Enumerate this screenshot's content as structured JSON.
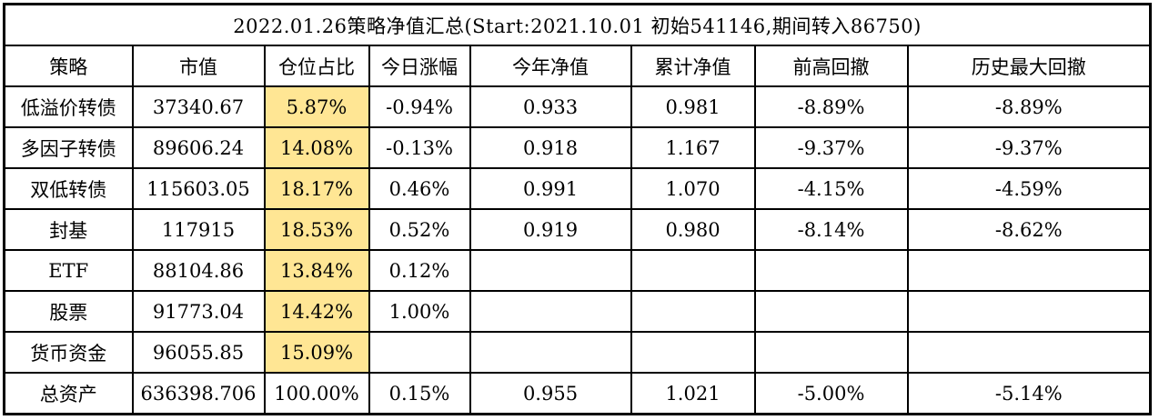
{
  "chart_data": {
    "type": "table",
    "title": "2022.01.26策略净值汇总(Start:2021.10.01 初始541146,期间转入86750)",
    "columns": [
      "策略",
      "市值",
      "仓位占比",
      "今日涨幅",
      "今年净值",
      "累计净值",
      "前高回撤",
      "历史最大回撤"
    ],
    "rows": [
      {
        "highlight_position": true,
        "cells": [
          "低溢价转债",
          "37340.67",
          "5.87%",
          "-0.94%",
          "0.933",
          "0.981",
          "-8.89%",
          "-8.89%"
        ]
      },
      {
        "highlight_position": true,
        "cells": [
          "多因子转债",
          "89606.24",
          "14.08%",
          "-0.13%",
          "0.918",
          "1.167",
          "-9.37%",
          "-9.37%"
        ]
      },
      {
        "highlight_position": true,
        "cells": [
          "双低转债",
          "115603.05",
          "18.17%",
          "0.46%",
          "0.991",
          "1.070",
          "-4.15%",
          "-4.59%"
        ]
      },
      {
        "highlight_position": true,
        "cells": [
          "封基",
          "117915",
          "18.53%",
          "0.52%",
          "0.919",
          "0.980",
          "-8.14%",
          "-8.62%"
        ]
      },
      {
        "highlight_position": true,
        "cells": [
          "ETF",
          "88104.86",
          "13.84%",
          "0.12%",
          "",
          "",
          "",
          ""
        ]
      },
      {
        "highlight_position": true,
        "cells": [
          "股票",
          "91773.04",
          "14.42%",
          "1.00%",
          "",
          "",
          "",
          ""
        ]
      },
      {
        "highlight_position": true,
        "cells": [
          "货币资金",
          "96055.85",
          "15.09%",
          "",
          "",
          "",
          "",
          ""
        ]
      },
      {
        "highlight_position": false,
        "cells": [
          "总资产",
          "636398.706",
          "100.00%",
          "0.15%",
          "0.955",
          "1.021",
          "-5.00%",
          "-5.14%"
        ]
      }
    ],
    "column_semantics": [
      "strategy",
      "market-value",
      "position-weight",
      "today-change",
      "ytd-nav",
      "cumulative-nav",
      "drawdown-from-prev-high",
      "historical-max-drawdown"
    ],
    "colors": {
      "position_highlight_fill": "#ffe694",
      "position_highlight_text": "#9c5700",
      "grid_border": "#000000",
      "text": "#000000",
      "background": "#ffffff"
    },
    "layout": {
      "grid": "on",
      "title_position": "merged-top-row"
    }
  }
}
